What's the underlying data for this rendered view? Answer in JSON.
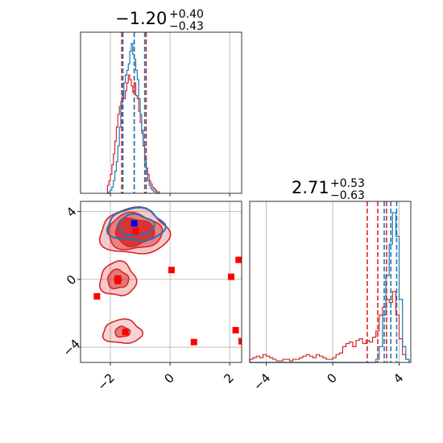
{
  "chart_data": [
    {
      "panel": "marginal-x",
      "type": "step-histogram",
      "title": {
        "value": "−1.20",
        "plus": "+0.40",
        "minus": "−0.43"
      },
      "xlim": [
        -3,
        2.4
      ],
      "grid": true,
      "bins_x": [
        -2.1,
        -2.05,
        -2.0,
        -1.95,
        -1.9,
        -1.85,
        -1.8,
        -1.75,
        -1.7,
        -1.65,
        -1.6,
        -1.55,
        -1.5,
        -1.45,
        -1.4,
        -1.35,
        -1.3,
        -1.25,
        -1.2,
        -1.15,
        -1.1,
        -1.05,
        -1.0,
        -0.95,
        -0.9,
        -0.85,
        -0.8,
        -0.75,
        -0.7,
        -0.65,
        -0.6,
        -0.55,
        -0.5,
        -0.45,
        -0.4
      ],
      "series": [
        {
          "color": "#d62728",
          "values": [
            0.05,
            0.08,
            0.12,
            0.18,
            0.25,
            0.33,
            0.42,
            0.5,
            0.55,
            0.58,
            0.62,
            0.6,
            0.65,
            0.7,
            0.75,
            0.72,
            0.68,
            0.64,
            0.7,
            0.62,
            0.6,
            0.52,
            0.45,
            0.38,
            0.3,
            0.22,
            0.16,
            0.12,
            0.08,
            0.06,
            0.04,
            0.03,
            0.02,
            0.01,
            0.01
          ]
        },
        {
          "color": "#1f77b4",
          "values": [
            0.0,
            0.01,
            0.02,
            0.04,
            0.08,
            0.14,
            0.2,
            0.3,
            0.42,
            0.55,
            0.62,
            0.7,
            0.75,
            0.78,
            0.82,
            0.9,
            0.95,
            0.88,
            0.85,
            0.78,
            0.72,
            0.6,
            0.5,
            0.4,
            0.3,
            0.2,
            0.14,
            0.08,
            0.05,
            0.03,
            0.02,
            0.01,
            0.01,
            0.0,
            0.0
          ]
        }
      ],
      "quantile_lines": [
        {
          "color": "#d62728",
          "x": [
            -1.62,
            -1.2,
            -0.8
          ]
        },
        {
          "color": "#1f77b4",
          "x": [
            -1.58,
            -1.2,
            -0.85
          ]
        }
      ]
    },
    {
      "panel": "marginal-y",
      "type": "step-histogram",
      "title": {
        "value": "2.71",
        "plus": "+0.53",
        "minus": "−0.63"
      },
      "xlim": [
        -5,
        4.7
      ],
      "xticks": [
        "−4",
        "0",
        "4"
      ],
      "grid": true,
      "bins_x": [
        -5.0,
        -4.8,
        -4.6,
        -4.4,
        -4.2,
        -4.0,
        -3.8,
        -3.6,
        -3.4,
        -3.2,
        -3.0,
        -2.8,
        -2.6,
        -2.4,
        -2.2,
        -2.0,
        -1.8,
        -1.6,
        -1.4,
        -1.2,
        -1.0,
        -0.8,
        -0.6,
        -0.4,
        -0.2,
        0.0,
        0.2,
        0.4,
        0.6,
        0.8,
        1.0,
        1.2,
        1.4,
        1.6,
        1.8,
        2.0,
        2.2,
        2.4,
        2.6,
        2.8,
        3.0,
        3.2,
        3.4,
        3.6,
        3.8,
        4.0,
        4.2,
        4.4
      ],
      "series": [
        {
          "color": "#d62728",
          "values": [
            0.02,
            0.03,
            0.04,
            0.03,
            0.05,
            0.04,
            0.03,
            0.02,
            0.01,
            0.01,
            0.02,
            0.02,
            0.01,
            0.02,
            0.02,
            0.03,
            0.04,
            0.05,
            0.04,
            0.03,
            0.05,
            0.04,
            0.03,
            0.02,
            0.02,
            0.03,
            0.05,
            0.06,
            0.1,
            0.12,
            0.13,
            0.1,
            0.14,
            0.15,
            0.12,
            0.14,
            0.13,
            0.16,
            0.2,
            0.3,
            0.35,
            0.4,
            0.38,
            0.45,
            0.3,
            0.15,
            0.05,
            0.02
          ]
        },
        {
          "color": "#1f77b4",
          "values": [
            0,
            0,
            0,
            0,
            0,
            0,
            0,
            0,
            0,
            0,
            0,
            0,
            0,
            0,
            0,
            0,
            0,
            0,
            0,
            0,
            0,
            0,
            0,
            0,
            0,
            0,
            0,
            0,
            0,
            0,
            0,
            0,
            0,
            0,
            0,
            0,
            0,
            0,
            0.02,
            0.1,
            0.3,
            0.55,
            0.75,
            0.95,
            0.8,
            0.4,
            0.1,
            0.02
          ]
        }
      ],
      "quantile_lines": [
        {
          "color": "#d62728",
          "x": [
            2.08,
            2.71,
            3.24
          ]
        },
        {
          "color": "#1f77b4",
          "x": [
            3.1,
            3.5,
            3.85
          ]
        }
      ]
    },
    {
      "panel": "joint",
      "type": "contour-scatter",
      "xlim": [
        -3,
        2.4
      ],
      "ylim": [
        -4.9,
        4.6
      ],
      "xticks": [
        "−2",
        "0",
        "2"
      ],
      "yticks": [
        "−4",
        "0",
        "4"
      ],
      "grid": true,
      "contours": [
        {
          "color": "#d62728",
          "cx": -1.2,
          "cy": 2.8,
          "levels": [
            {
              "rx": 1.15,
              "ry": 1.35,
              "alpha": 0.25
            },
            {
              "rx": 0.9,
              "ry": 1.05,
              "alpha": 0.45
            },
            {
              "rx": 0.65,
              "ry": 0.8,
              "alpha": 0.85
            }
          ]
        },
        {
          "color": "#d62728",
          "cx": -1.75,
          "cy": 0.0,
          "levels": [
            {
              "rx": 0.6,
              "ry": 1.0,
              "alpha": 0.25
            },
            {
              "rx": 0.35,
              "ry": 0.55,
              "alpha": 0.5
            },
            {
              "rx": 0.12,
              "ry": 0.2,
              "alpha": 0.85
            }
          ]
        },
        {
          "color": "#d62728",
          "cx": -1.6,
          "cy": -3.1,
          "levels": [
            {
              "rx": 0.65,
              "ry": 0.7,
              "alpha": 0.2
            },
            {
              "rx": 0.25,
              "ry": 0.3,
              "alpha": 0.5
            }
          ]
        },
        {
          "color": "#1f77b4",
          "cx": -1.15,
          "cy": 3.2,
          "levels": [
            {
              "rx": 0.95,
              "ry": 0.95,
              "alpha": 0.0
            },
            {
              "rx": 0.6,
              "ry": 0.6,
              "alpha": 0.0
            }
          ]
        }
      ],
      "points": [
        {
          "x": -1.2,
          "y": 3.3,
          "color": "#0000ff"
        },
        {
          "x": -1.15,
          "y": 2.85,
          "color": "#ff0000"
        },
        {
          "x": -1.75,
          "y": -0.1,
          "color": "#ff0000"
        },
        {
          "x": -1.75,
          "y": 0.05,
          "color": "#ff0000"
        },
        {
          "x": -2.45,
          "y": -1.0,
          "color": "#ff0000"
        },
        {
          "x": 0.05,
          "y": 0.55,
          "color": "#ff0000"
        },
        {
          "x": 2.05,
          "y": 0.15,
          "color": "#ff0000"
        },
        {
          "x": 2.3,
          "y": 1.15,
          "color": "#ff0000"
        },
        {
          "x": -1.5,
          "y": -3.1,
          "color": "#ff0000"
        },
        {
          "x": 0.8,
          "y": -3.7,
          "color": "#ff0000"
        },
        {
          "x": 2.2,
          "y": -3.0,
          "color": "#ff0000"
        },
        {
          "x": 2.4,
          "y": -3.65,
          "color": "#ff0000"
        }
      ]
    }
  ]
}
